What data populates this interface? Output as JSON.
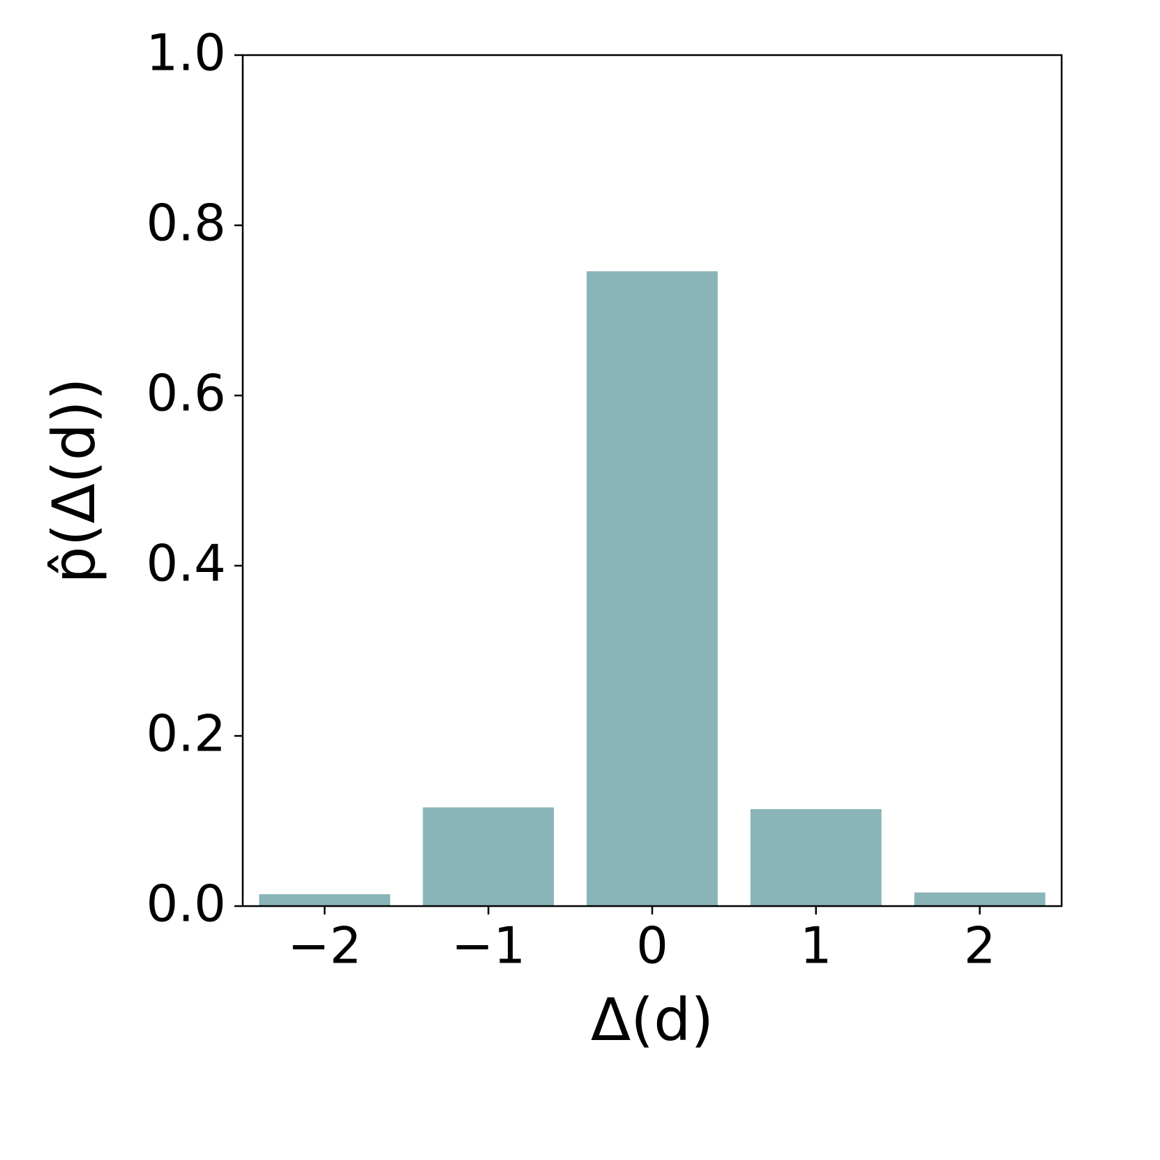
{
  "chart_data": {
    "type": "bar",
    "categories": [
      "−2",
      "−1",
      "0",
      "1",
      "2"
    ],
    "values": [
      0.014,
      0.116,
      0.746,
      0.114,
      0.016
    ],
    "color": "#8ab5b8",
    "xlabel": "Δ(d)",
    "ylabel": "p̂(Δ(d))",
    "ylim": [
      0,
      1.0
    ],
    "yticks": [
      {
        "value": 0,
        "label": "0.0"
      },
      {
        "value": 0.2,
        "label": "0.2"
      },
      {
        "value": 0.4,
        "label": "0.4"
      },
      {
        "value": 0.6,
        "label": "0.6"
      },
      {
        "value": 0.8,
        "label": "0.8"
      },
      {
        "value": 1.0,
        "label": "1.0"
      }
    ],
    "grid": false
  }
}
